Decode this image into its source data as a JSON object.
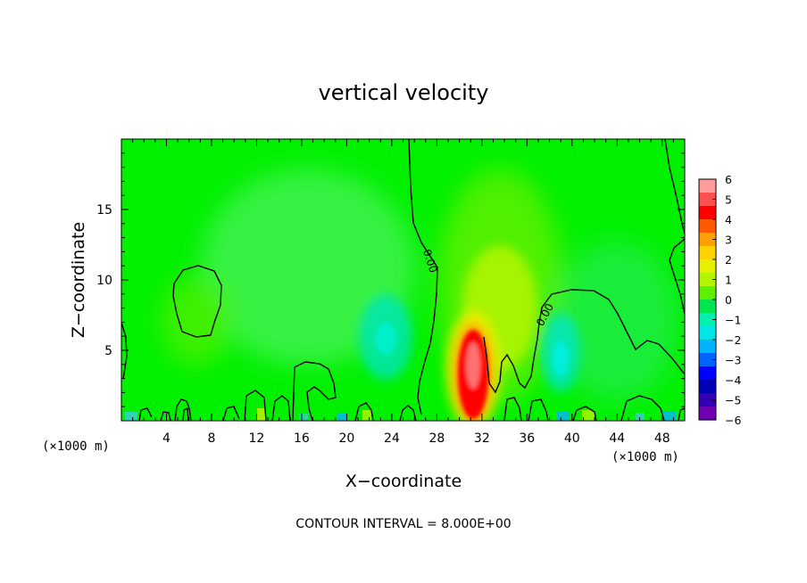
{
  "chart_data": {
    "type": "heatmap",
    "title": "vertical velocity",
    "xlabel": "X−coordinate",
    "ylabel": "Z−coordinate",
    "x_unit_left": "(×1000 m)",
    "x_unit_right": "(×1000 m)",
    "xlim": [
      0,
      50
    ],
    "ylim": [
      0,
      20
    ],
    "x_ticks": [
      4,
      8,
      12,
      16,
      20,
      24,
      28,
      32,
      36,
      40,
      44,
      48
    ],
    "x_tick_labels": [
      "4",
      "8",
      "12",
      "16",
      "20",
      "24",
      "28",
      "32",
      "36",
      "40",
      "44",
      "48"
    ],
    "y_ticks": [
      5,
      10,
      15
    ],
    "y_tick_labels": [
      "5",
      "10",
      "15"
    ],
    "colorbar": {
      "min": -6,
      "max": 6,
      "ticks": [
        6,
        5,
        4,
        3,
        2,
        1,
        0,
        -1,
        -2,
        -3,
        -4,
        -5,
        -6
      ],
      "tick_labels": [
        "6",
        "5",
        "4",
        "3",
        "2",
        "1",
        "0",
        "−1",
        "−2",
        "−3",
        "−4",
        "−5",
        "−6"
      ],
      "colors": [
        "#ff9c9c",
        "#ff5050",
        "#ff0000",
        "#ff5a00",
        "#ffa000",
        "#ffd200",
        "#e6f000",
        "#b4f500",
        "#5ef000",
        "#00e650",
        "#00f0b0",
        "#00e6e6",
        "#00b4ff",
        "#0064ff",
        "#0000ff",
        "#0000b4",
        "#3200b4",
        "#7000b4"
      ]
    },
    "contour_labels": [
      "0.00",
      "0.00"
    ],
    "annotation": "CONTOUR INTERVAL = 8.000E+00",
    "features": [
      {
        "name": "updraft core",
        "x": 30.8,
        "z": 3.6,
        "value": 6.0
      },
      {
        "name": "weak updraft",
        "x": 33.0,
        "z": 8.5,
        "value": 1.2
      },
      {
        "name": "downdraft",
        "x": 23.5,
        "z": 5.8,
        "value": -1.8
      },
      {
        "name": "downdraft",
        "x": 39.0,
        "z": 4.8,
        "value": -2.0
      },
      {
        "name": "weak updraft",
        "x": 6.0,
        "z": 8.0,
        "value": 0.5
      }
    ]
  }
}
